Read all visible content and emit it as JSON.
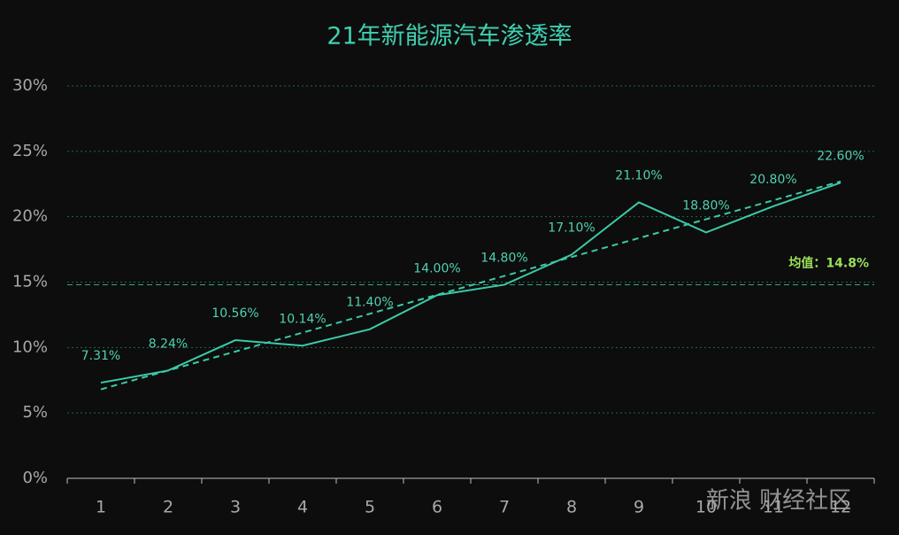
{
  "chart_data": {
    "type": "line",
    "title": "21年新能源汽车渗透率",
    "categories": [
      "1",
      "2",
      "3",
      "4",
      "5",
      "6",
      "7",
      "8",
      "9",
      "10",
      "11",
      "12"
    ],
    "values": [
      7.31,
      8.24,
      10.56,
      10.14,
      11.4,
      14.0,
      14.8,
      17.1,
      21.1,
      18.8,
      20.8,
      22.6
    ],
    "value_labels": [
      "7.31%",
      "8.24%",
      "10.56%",
      "10.14%",
      "11.40%",
      "14.00%",
      "14.80%",
      "17.10%",
      "21.10%",
      "18.80%",
      "20.80%",
      "22.60%"
    ],
    "color": "#3cc9a8",
    "ylim": [
      0,
      30
    ],
    "yticks": [
      {
        "value": 0,
        "label": "0%"
      },
      {
        "value": 5,
        "label": "5%"
      },
      {
        "value": 10,
        "label": "10%"
      },
      {
        "value": 15,
        "label": "15%"
      },
      {
        "value": 20,
        "label": "20%"
      },
      {
        "value": 25,
        "label": "25%"
      },
      {
        "value": 30,
        "label": "30%"
      }
    ],
    "grid": true,
    "trendline": [
      6.8,
      22.7
    ],
    "average": {
      "value": 14.8,
      "label": "均值：14.8%",
      "color": "#9be05a"
    },
    "watermark": "新浪 财经社区"
  }
}
